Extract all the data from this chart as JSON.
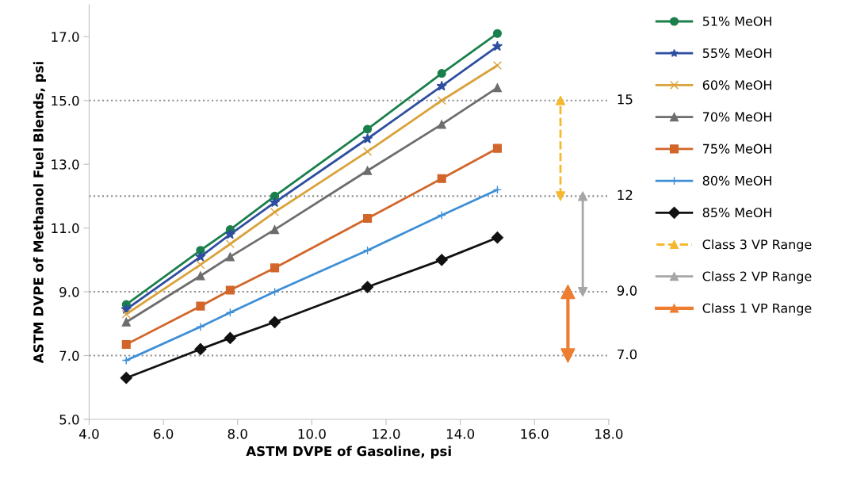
{
  "chart_data": {
    "type": "line",
    "xlabel": "ASTM DVPE of Gasoline, psi",
    "ylabel": "ASTM DVPE of Methanol Fuel Blends, psi",
    "x": [
      5,
      7,
      7.8,
      9,
      11.5,
      13.5,
      15
    ],
    "series": [
      {
        "name": "51% MeOH",
        "color": "#1a7f4b",
        "marker": "circle",
        "values": [
          8.6,
          10.3,
          10.95,
          12.0,
          14.1,
          15.85,
          17.1
        ]
      },
      {
        "name": "55% MeOH",
        "color": "#2e4ea0",
        "marker": "star",
        "values": [
          8.45,
          10.1,
          10.8,
          11.8,
          13.8,
          15.45,
          16.7
        ]
      },
      {
        "name": "60% MeOH",
        "color": "#d9a23a",
        "marker": "x",
        "values": [
          8.3,
          9.85,
          10.5,
          11.5,
          13.4,
          15.0,
          16.1
        ]
      },
      {
        "name": "70% MeOH",
        "color": "#6d6d6d",
        "marker": "triangle",
        "values": [
          8.05,
          9.5,
          10.1,
          10.95,
          12.8,
          14.25,
          15.4
        ]
      },
      {
        "name": "75% MeOH",
        "color": "#d2662a",
        "marker": "square",
        "values": [
          7.35,
          8.55,
          9.05,
          9.75,
          11.3,
          12.55,
          13.5
        ]
      },
      {
        "name": "80% MeOH",
        "color": "#3e8fd6",
        "marker": "cross",
        "values": [
          6.85,
          7.9,
          8.35,
          9.0,
          10.3,
          11.4,
          12.2
        ]
      },
      {
        "name": "85% MeOH",
        "color": "#111111",
        "marker": "diamond",
        "values": [
          6.3,
          7.2,
          7.55,
          8.05,
          9.15,
          10.0,
          10.7
        ]
      },
      {
        "name": "Class 3 VP Range",
        "color": "#f5b82e",
        "marker": "triangle",
        "line_style": "dashed",
        "x": [
          16.7,
          16.7
        ],
        "values": [
          12,
          15
        ]
      },
      {
        "name": "Class 2 VP Range",
        "color": "#a6a6a6",
        "marker": "triangle",
        "line_style": "solid",
        "x": [
          17.3,
          17.3
        ],
        "values": [
          9,
          12
        ]
      },
      {
        "name": "Class 1 VP Range",
        "color": "#ed7d31",
        "marker": "triangle",
        "line_style": "solid",
        "x": [
          16.9,
          16.9
        ],
        "values": [
          7,
          9
        ]
      }
    ],
    "xlim": [
      4,
      18
    ],
    "ylim": [
      5,
      18
    ],
    "xticks": [
      {
        "value": 4,
        "label": "4.0"
      },
      {
        "value": 6,
        "label": "6.0"
      },
      {
        "value": 8,
        "label": "8.0"
      },
      {
        "value": 10,
        "label": "10.0"
      },
      {
        "value": 12,
        "label": "12.0"
      },
      {
        "value": 14,
        "label": "14.0"
      },
      {
        "value": 16,
        "label": "16.0"
      },
      {
        "value": 18,
        "label": "18.0"
      }
    ],
    "yticks": [
      {
        "value": 5,
        "label": "5.0"
      },
      {
        "value": 7,
        "label": "7.0"
      },
      {
        "value": 9,
        "label": "9.0"
      },
      {
        "value": 11,
        "label": "11.0"
      },
      {
        "value": 13,
        "label": "13.0"
      },
      {
        "value": 15,
        "label": "15.0"
      },
      {
        "value": 17,
        "label": "17.0"
      }
    ],
    "ref_lines": [
      {
        "axis": "y",
        "value": 15,
        "label": "15",
        "color": "#8c8c8c",
        "line_style": "dotted"
      },
      {
        "axis": "y",
        "value": 12,
        "label": "12",
        "color": "#8c8c8c",
        "line_style": "dotted"
      },
      {
        "axis": "y",
        "value": 9,
        "label": "9.0",
        "color": "#8c8c8c",
        "line_style": "dotted"
      },
      {
        "axis": "y",
        "value": 7,
        "label": "7.0",
        "color": "#8c8c8c",
        "line_style": "dotted"
      }
    ],
    "grid": false,
    "legend": "right"
  }
}
